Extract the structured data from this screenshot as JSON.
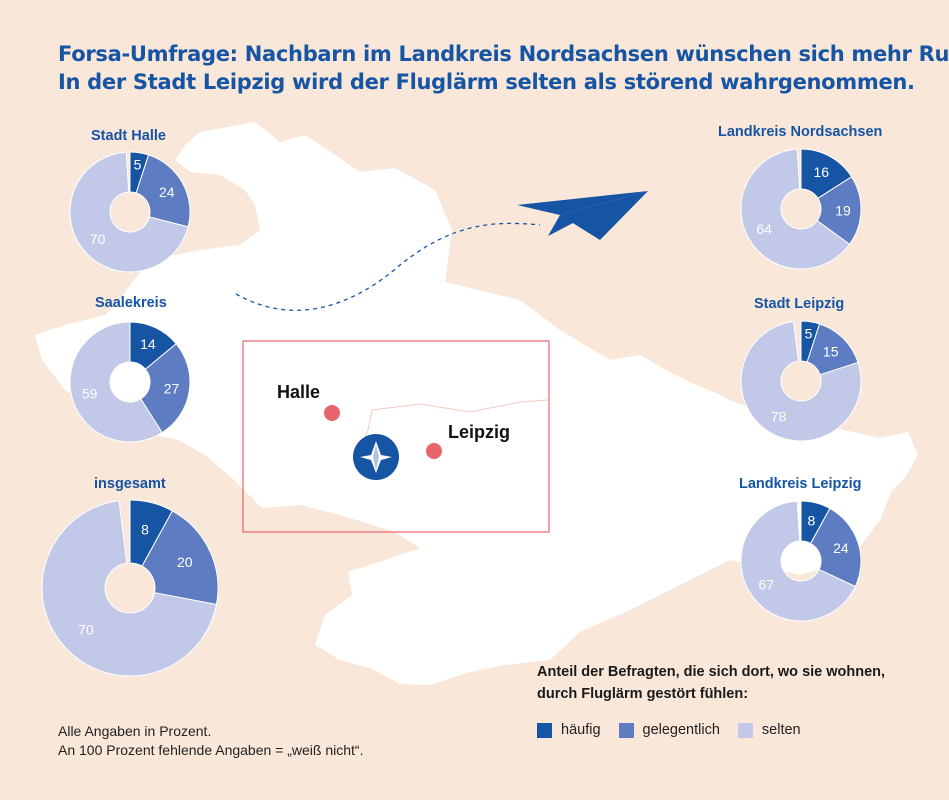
{
  "title": {
    "line1": "Forsa-Umfrage: Nachbarn im Landkreis Nordsachsen wünschen sich mehr Ruhe.",
    "line2": "In der Stadt Leipzig wird der Fluglärm selten als störend wahrgenommen."
  },
  "map": {
    "city_halle": "Halle",
    "city_leipzig": "Leipzig",
    "airport_icon": "airport-compass-icon",
    "plane_icon": "paper-plane-icon"
  },
  "colors": {
    "haeufig": "#1654a4",
    "gelegentlich": "#5e7cc2",
    "selten": "#c2c8e8",
    "background": "#f9e7d9",
    "map": "#ffffff",
    "city_dot": "#e8646a"
  },
  "legend": {
    "title_line1": "Anteil der Befragten, die sich dort, wo sie wohnen,",
    "title_line2": "durch Fluglärm gestört fühlen:",
    "items": [
      "häufig",
      "gelegentlich",
      "selten"
    ]
  },
  "footnote": {
    "line1": "Alle Angaben in Prozent.",
    "line2": "An 100 Prozent fehlende Angaben = „weiß nicht“."
  },
  "chart_data": [
    {
      "type": "pie",
      "title": "Stadt Halle",
      "categories": [
        "häufig",
        "gelegentlich",
        "selten"
      ],
      "values": [
        5,
        24,
        70
      ]
    },
    {
      "type": "pie",
      "title": "Saalekreis",
      "categories": [
        "häufig",
        "gelegentlich",
        "selten"
      ],
      "values": [
        14,
        27,
        59
      ]
    },
    {
      "type": "pie",
      "title": "insgesamt",
      "categories": [
        "häufig",
        "gelegentlich",
        "selten"
      ],
      "values": [
        8,
        20,
        70
      ]
    },
    {
      "type": "pie",
      "title": "Landkreis Nordsachsen",
      "categories": [
        "häufig",
        "gelegentlich",
        "selten"
      ],
      "values": [
        16,
        19,
        64
      ]
    },
    {
      "type": "pie",
      "title": "Stadt Leipzig",
      "categories": [
        "häufig",
        "gelegentlich",
        "selten"
      ],
      "values": [
        5,
        15,
        78
      ]
    },
    {
      "type": "pie",
      "title": "Landkreis Leipzig",
      "categories": [
        "häufig",
        "gelegentlich",
        "selten"
      ],
      "values": [
        8,
        24,
        67
      ]
    }
  ]
}
